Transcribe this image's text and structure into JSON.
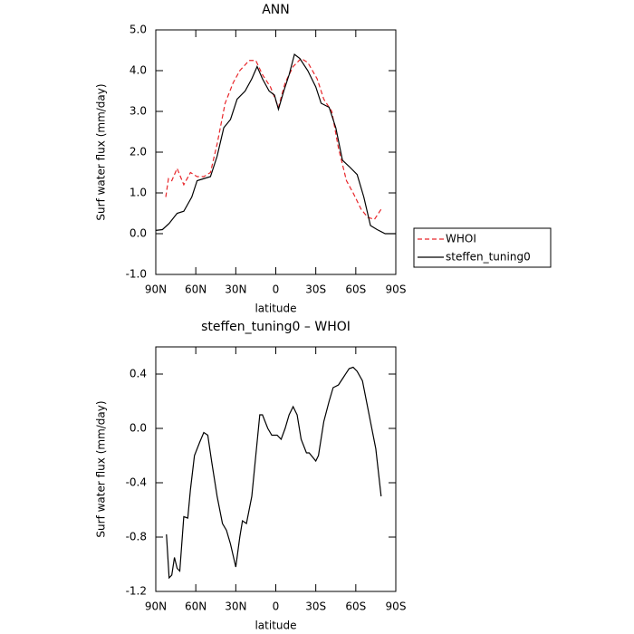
{
  "chart_data": [
    {
      "type": "line",
      "title": "ANN",
      "xlabel": "latitude",
      "ylabel": "Surf water flux (mm/day)",
      "xlim": [
        90,
        -90
      ],
      "xticks": [
        {
          "value": 90,
          "label": "90N"
        },
        {
          "value": 60,
          "label": "60N"
        },
        {
          "value": 30,
          "label": "30N"
        },
        0,
        {
          "value": -30,
          "label": "30S"
        },
        {
          "value": -60,
          "label": "60S"
        },
        {
          "value": -90,
          "label": "90S"
        }
      ],
      "ylim": [
        -1,
        5
      ],
      "yticks": [
        {
          "value": -1,
          "label": "-1.0"
        },
        {
          "value": 0,
          "label": "0.0"
        },
        {
          "value": 1,
          "label": "1.0"
        },
        {
          "value": 2,
          "label": "2.0"
        },
        {
          "value": 3,
          "label": "3.0"
        },
        {
          "value": 4,
          "label": "4.0"
        },
        {
          "value": 5,
          "label": "5.0"
        }
      ],
      "legend": "outside right",
      "series": [
        {
          "name": "WHOI",
          "color": "#e8262a",
          "style": "dashed",
          "x": [
            82.5,
            80.5,
            78,
            74,
            69,
            64,
            59,
            54,
            49,
            44,
            38,
            32,
            27,
            20,
            15,
            10,
            4,
            -2,
            -7,
            -13,
            -19,
            -24,
            -31,
            -36,
            -42,
            -47,
            -53,
            -58,
            -64,
            -69,
            -74,
            -79
          ],
          "values": [
            0.9,
            1.35,
            1.3,
            1.6,
            1.2,
            1.5,
            1.4,
            1.4,
            1.5,
            2.2,
            3.2,
            3.7,
            4.0,
            4.25,
            4.25,
            3.9,
            3.6,
            3.1,
            3.7,
            4.1,
            4.3,
            4.2,
            3.8,
            3.3,
            3.0,
            2.1,
            1.3,
            1.0,
            0.6,
            0.4,
            0.35,
            0.6
          ]
        },
        {
          "name": "steffen_tuning0",
          "color": "#000000",
          "style": "solid",
          "x": [
            90,
            85,
            80,
            74,
            69,
            63,
            59,
            54,
            49,
            44,
            39,
            34,
            29,
            23,
            18,
            14,
            10,
            5,
            1,
            -2,
            -6,
            -10,
            -14,
            -18,
            -24,
            -30,
            -34,
            -40,
            -45,
            -50,
            -55,
            -61,
            -66,
            -71,
            -76,
            -82,
            -90
          ],
          "values": [
            0.08,
            0.1,
            0.25,
            0.5,
            0.55,
            0.9,
            1.3,
            1.35,
            1.4,
            1.9,
            2.6,
            2.8,
            3.3,
            3.5,
            3.8,
            4.1,
            3.8,
            3.5,
            3.4,
            3.05,
            3.5,
            3.9,
            4.4,
            4.3,
            4.0,
            3.6,
            3.2,
            3.1,
            2.6,
            1.8,
            1.65,
            1.45,
            0.9,
            0.2,
            0.1,
            0.0,
            0.0
          ]
        }
      ]
    },
    {
      "type": "line",
      "title": "steffen_tuning0 – WHOI",
      "xlabel": "latitude",
      "ylabel": "Surf water flux (mm/day)",
      "xlim": [
        90,
        -90
      ],
      "xticks": [
        {
          "value": 90,
          "label": "90N"
        },
        {
          "value": 60,
          "label": "60N"
        },
        {
          "value": 30,
          "label": "30N"
        },
        0,
        {
          "value": -30,
          "label": "30S"
        },
        {
          "value": -60,
          "label": "60S"
        },
        {
          "value": -90,
          "label": "90S"
        }
      ],
      "ylim": [
        -1.2,
        0.6
      ],
      "yticks": [
        -1.2,
        -0.8,
        -0.4,
        {
          "value": 0,
          "label": "0.0"
        },
        0.4
      ],
      "series": [
        {
          "color": "#000000",
          "style": "solid",
          "x": [
            82,
            80,
            78,
            76,
            74,
            72,
            69,
            66,
            64,
            61,
            57,
            54,
            51,
            48,
            44,
            40,
            37,
            34,
            30,
            27,
            25,
            22,
            18,
            15,
            12,
            10,
            6,
            3,
            -1,
            -4,
            -7,
            -10,
            -13,
            -16,
            -19,
            -23,
            -25,
            -30,
            -32,
            -36,
            -40,
            -43,
            -47,
            -51,
            -55,
            -58,
            -61,
            -65,
            -68,
            -72,
            -75,
            -79
          ],
          "values": [
            -0.78,
            -1.1,
            -1.08,
            -0.95,
            -1.03,
            -1.05,
            -0.65,
            -0.66,
            -0.45,
            -0.2,
            -0.1,
            -0.03,
            -0.05,
            -0.25,
            -0.5,
            -0.7,
            -0.75,
            -0.85,
            -1.02,
            -0.8,
            -0.68,
            -0.7,
            -0.5,
            -0.2,
            0.1,
            0.1,
            0.0,
            -0.05,
            -0.05,
            -0.08,
            0.0,
            0.1,
            0.16,
            0.1,
            -0.08,
            -0.18,
            -0.18,
            -0.24,
            -0.2,
            0.05,
            0.2,
            0.3,
            0.32,
            0.38,
            0.44,
            0.45,
            0.42,
            0.35,
            0.2,
            0.0,
            -0.15,
            -0.5
          ]
        }
      ]
    }
  ]
}
